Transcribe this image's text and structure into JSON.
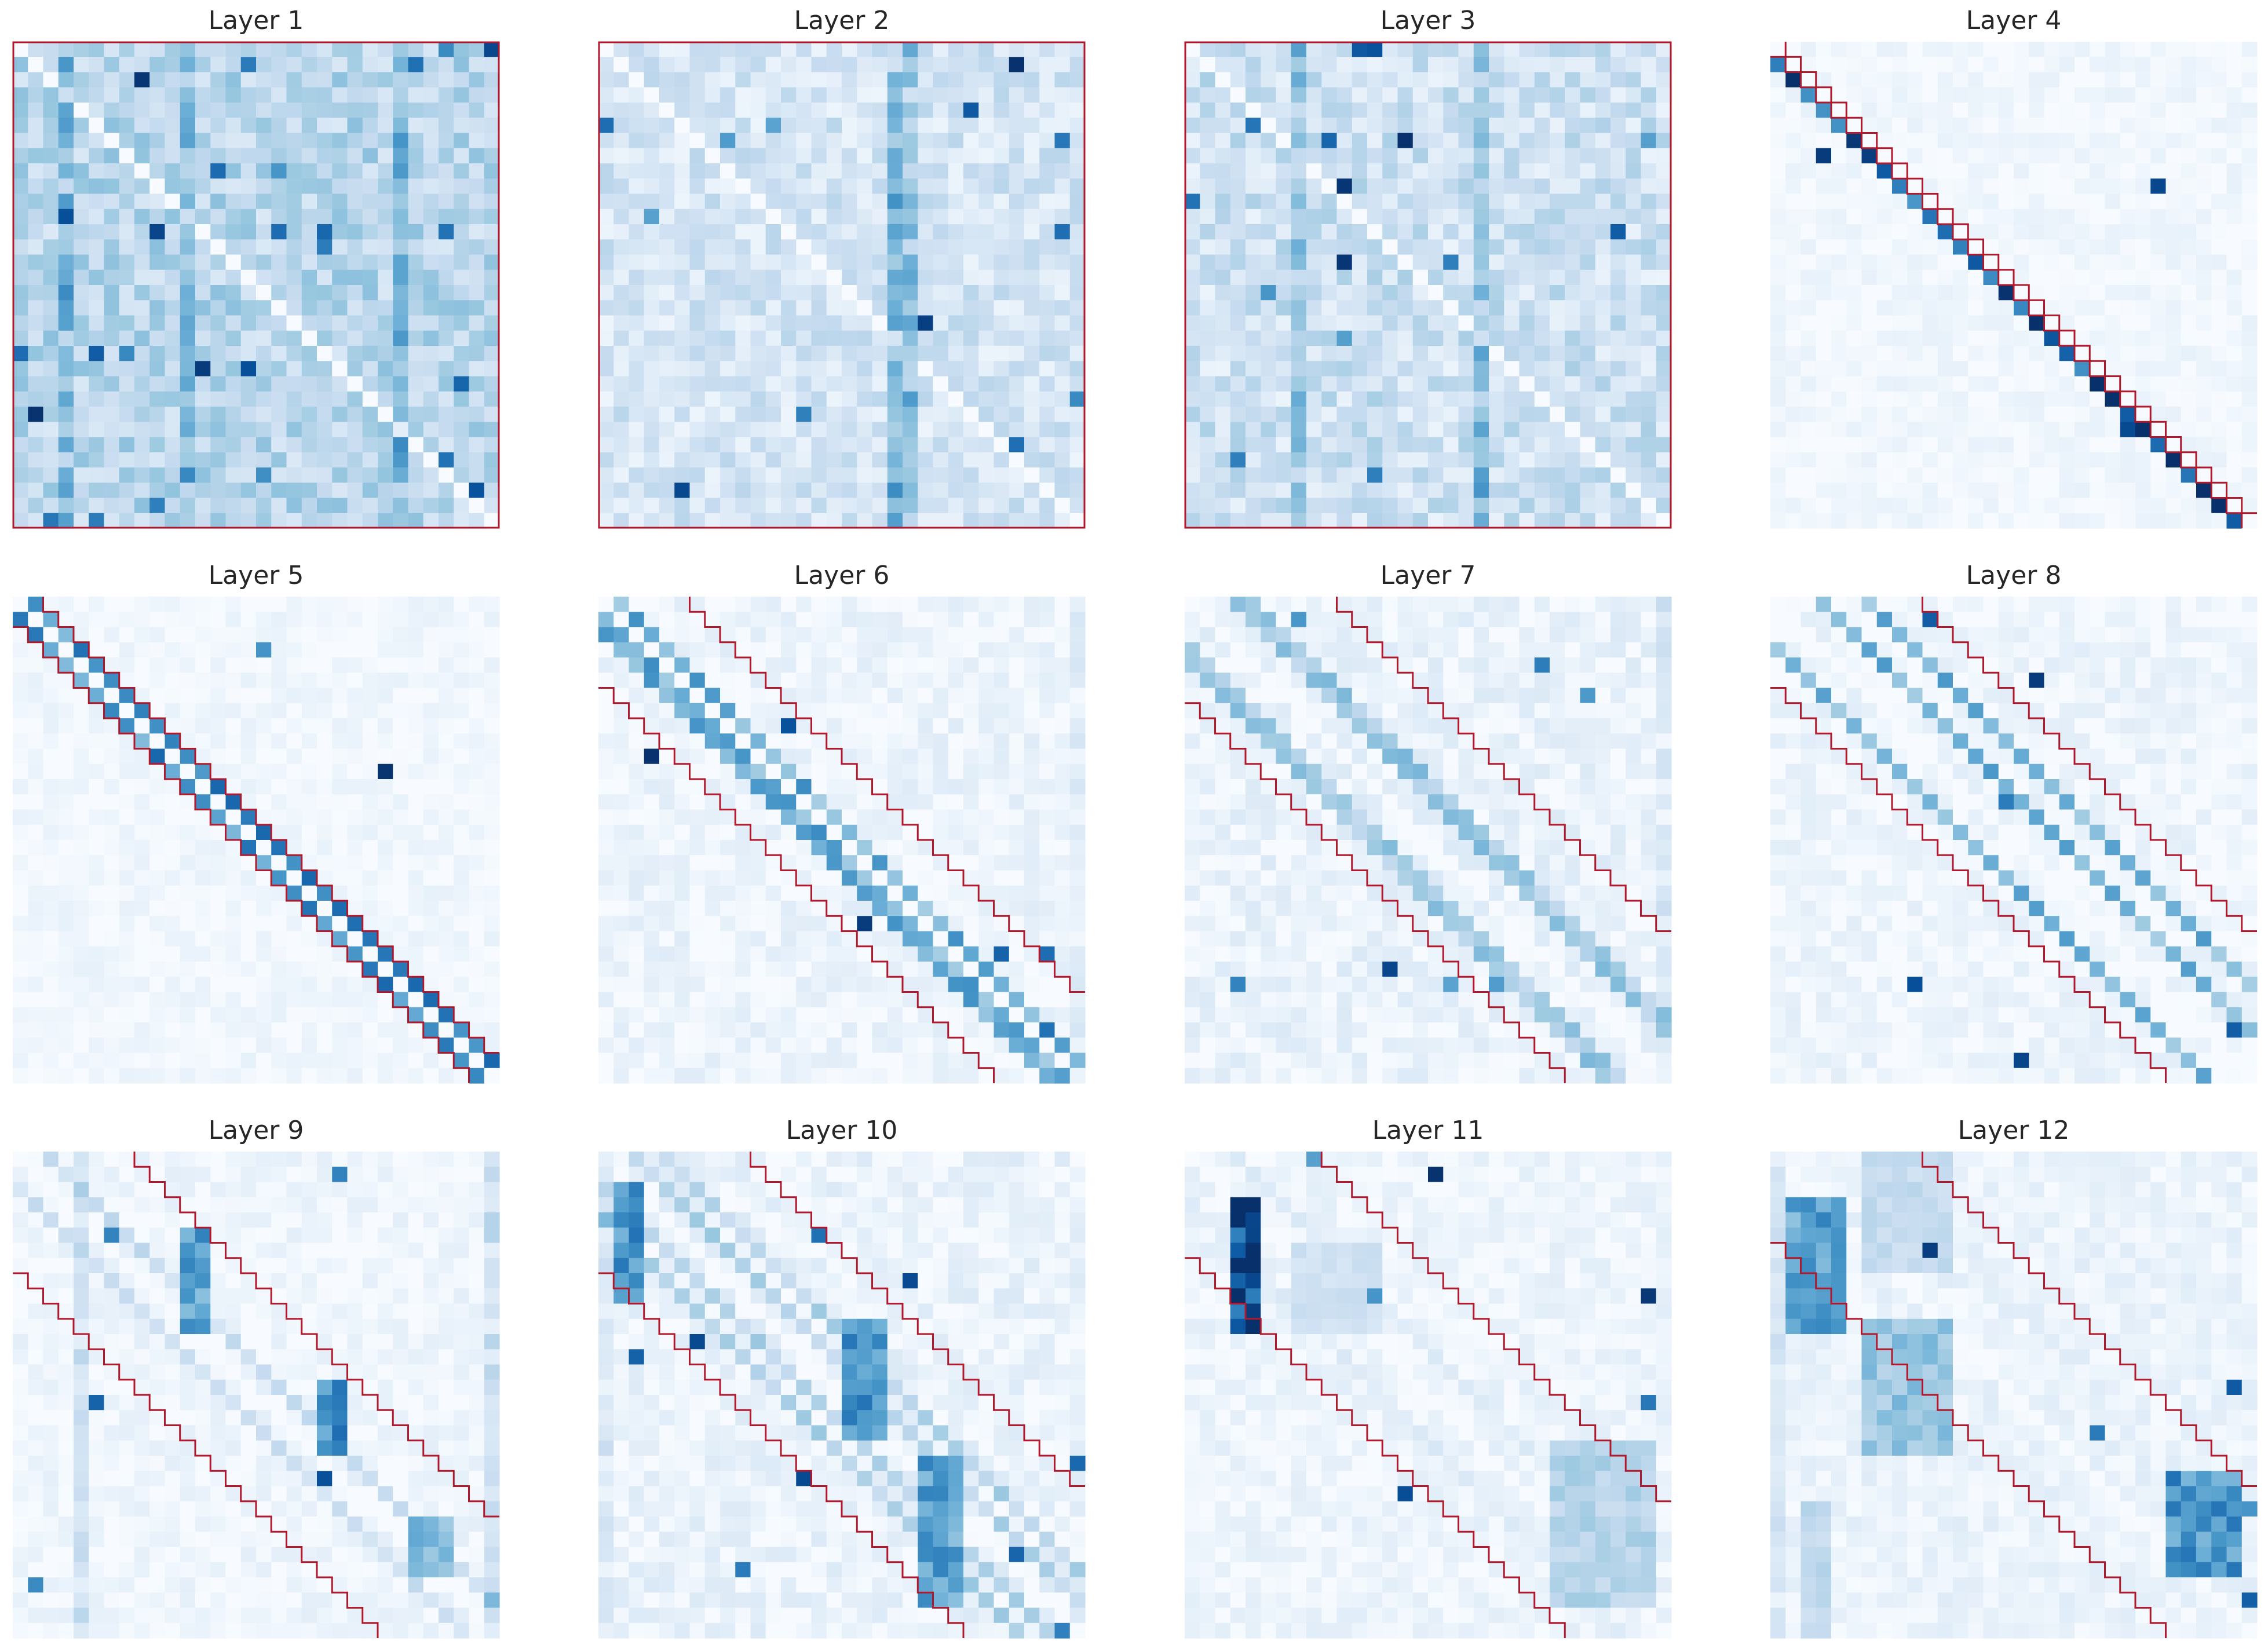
{
  "chart_data": {
    "type": "heatmap",
    "colormap": "Blues",
    "colors": {
      "scale": [
        "#f7fbff",
        "#deebf7",
        "#c6dbef",
        "#9ecae1",
        "#6baed6",
        "#4292c6",
        "#2171b5",
        "#08519c",
        "#08306b"
      ],
      "window_outline": "#b2182b"
    },
    "grid": false,
    "axes_visible": false,
    "matrix_size": 32,
    "panels": [
      {
        "title": "Layer 1",
        "window": {
          "full": true
        },
        "pattern": {
          "seed": 11,
          "base": 0.28,
          "noise": 0.14,
          "diag": 0.0,
          "offsets": [
            1
          ],
          "offset_strength": 0.1,
          "hot_cols": [
            3,
            11,
            25
          ],
          "hot_col_strength": 0.2,
          "blocks": [],
          "spikes": 26,
          "self": 0.0
        }
      },
      {
        "title": "Layer 2",
        "window": {
          "full": true
        },
        "pattern": {
          "seed": 22,
          "base": 0.17,
          "noise": 0.12,
          "diag": 0.0,
          "offsets": [
            1,
            2
          ],
          "offset_strength": 0.22,
          "hot_cols": [
            20,
            19
          ],
          "hot_col_strength": 0.28,
          "blocks": [],
          "spikes": 14,
          "self": 0.0
        }
      },
      {
        "title": "Layer 3",
        "window": {
          "full": true
        },
        "pattern": {
          "seed": 33,
          "base": 0.2,
          "noise": 0.14,
          "diag": 0.0,
          "offsets": [
            1,
            2
          ],
          "offset_strength": 0.22,
          "hot_cols": [
            7,
            19
          ],
          "hot_col_strength": 0.22,
          "blocks": [],
          "spikes": 18,
          "self": 0.0
        }
      },
      {
        "title": "Layer 4",
        "window": {
          "full": false,
          "lower": 1,
          "upper": 1
        },
        "pattern": {
          "seed": 44,
          "base": 0.03,
          "noise": 0.05,
          "diag": 0.0,
          "offsets": [
            -1
          ],
          "offset_strength": 0.82,
          "hot_cols": [],
          "hot_col_strength": 0.0,
          "blocks": [],
          "spikes": 3,
          "self": 0.0
        }
      },
      {
        "title": "Layer 5",
        "window": {
          "full": false,
          "lower": 2,
          "upper": 2
        },
        "pattern": {
          "seed": 55,
          "base": 0.03,
          "noise": 0.05,
          "diag": 0.0,
          "offsets": [
            -1,
            1
          ],
          "offset_strength": 0.62,
          "hot_cols": [],
          "hot_col_strength": 0.0,
          "blocks": [],
          "spikes": 2,
          "self": 0.0
        }
      },
      {
        "title": "Layer 6",
        "window": {
          "full": false,
          "lower": 6,
          "upper": 6
        },
        "pattern": {
          "seed": 66,
          "base": 0.05,
          "noise": 0.07,
          "diag": 0.0,
          "offsets": [
            -1,
            -2,
            1
          ],
          "offset_strength": 0.5,
          "hot_cols": [
            31
          ],
          "hot_col_strength": 0.06,
          "blocks": [],
          "spikes": 6,
          "self": 0.0
        }
      },
      {
        "title": "Layer 7",
        "window": {
          "full": false,
          "lower": 7,
          "upper": 10
        },
        "pattern": {
          "seed": 77,
          "base": 0.06,
          "noise": 0.08,
          "diag": 0.0,
          "offsets": [
            3,
            4,
            -3,
            -4
          ],
          "offset_strength": 0.36,
          "hot_cols": [
            31
          ],
          "hot_col_strength": 0.08,
          "blocks": [],
          "spikes": 8,
          "self": 0.0
        }
      },
      {
        "title": "Layer 8",
        "window": {
          "full": false,
          "lower": 6,
          "upper": 10
        },
        "pattern": {
          "seed": 88,
          "base": 0.04,
          "noise": 0.07,
          "diag": 0.0,
          "offsets": [
            3,
            6,
            -3
          ],
          "offset_strength": 0.46,
          "hot_cols": [],
          "hot_col_strength": 0.0,
          "blocks": [],
          "spikes": 6,
          "self": 0.0
        }
      },
      {
        "title": "Layer 9",
        "window": {
          "full": false,
          "lower": 8,
          "upper": 8
        },
        "pattern": {
          "seed": 99,
          "base": 0.04,
          "noise": 0.06,
          "diag": 0.0,
          "offsets": [
            2,
            -2
          ],
          "offset_strength": 0.22,
          "hot_cols": [
            4,
            31
          ],
          "hot_col_strength": 0.16,
          "blocks": [
            {
              "r0": 5,
              "r1": 11,
              "c0": 11,
              "c1": 12,
              "v": 0.55
            },
            {
              "r0": 15,
              "r1": 19,
              "c0": 20,
              "c1": 21,
              "v": 0.65
            },
            {
              "r0": 24,
              "r1": 27,
              "c0": 26,
              "c1": 28,
              "v": 0.45
            }
          ],
          "spikes": 5,
          "self": 0.0
        }
      },
      {
        "title": "Layer 10",
        "window": {
          "full": false,
          "lower": 8,
          "upper": 10
        },
        "pattern": {
          "seed": 110,
          "base": 0.06,
          "noise": 0.08,
          "diag": 0.0,
          "offsets": [
            2,
            4,
            -2,
            -4
          ],
          "offset_strength": 0.3,
          "hot_cols": [
            0
          ],
          "hot_col_strength": 0.08,
          "blocks": [
            {
              "r0": 2,
              "r1": 9,
              "c0": 1,
              "c1": 2,
              "v": 0.62
            },
            {
              "r0": 11,
              "r1": 18,
              "c0": 16,
              "c1": 18,
              "v": 0.6
            },
            {
              "r0": 20,
              "r1": 29,
              "c0": 21,
              "c1": 23,
              "v": 0.55
            }
          ],
          "spikes": 10,
          "self": 0.0
        }
      },
      {
        "title": "Layer 11",
        "window": {
          "full": false,
          "lower": 7,
          "upper": 9
        },
        "pattern": {
          "seed": 121,
          "base": 0.05,
          "noise": 0.06,
          "diag": 0.0,
          "offsets": [
            3,
            -3
          ],
          "offset_strength": 0.12,
          "hot_cols": [],
          "hot_col_strength": 0.0,
          "blocks": [
            {
              "r0": 3,
              "r1": 11,
              "c0": 3,
              "c1": 4,
              "v": 0.92
            },
            {
              "r0": 6,
              "r1": 11,
              "c0": 7,
              "c1": 12,
              "v": 0.2
            },
            {
              "r0": 19,
              "r1": 29,
              "c0": 24,
              "c1": 30,
              "v": 0.3
            }
          ],
          "spikes": 6,
          "self": 0.0
        }
      },
      {
        "title": "Layer 12",
        "window": {
          "full": false,
          "lower": 6,
          "upper": 10
        },
        "pattern": {
          "seed": 132,
          "base": 0.06,
          "noise": 0.06,
          "diag": 0.0,
          "offsets": [],
          "offset_strength": 0.0,
          "hot_cols": [
            0
          ],
          "hot_col_strength": 0.1,
          "blocks": [
            {
              "r0": 3,
              "r1": 11,
              "c0": 1,
              "c1": 4,
              "v": 0.55
            },
            {
              "r0": 11,
              "r1": 19,
              "c0": 6,
              "c1": 11,
              "v": 0.38
            },
            {
              "r0": 21,
              "r1": 27,
              "c0": 26,
              "c1": 30,
              "v": 0.6
            },
            {
              "r0": 0,
              "r1": 7,
              "c0": 6,
              "c1": 11,
              "v": 0.24
            },
            {
              "r0": 23,
              "r1": 31,
              "c0": 2,
              "c1": 3,
              "v": 0.26
            }
          ],
          "spikes": 5,
          "self": 0.0
        }
      }
    ]
  }
}
